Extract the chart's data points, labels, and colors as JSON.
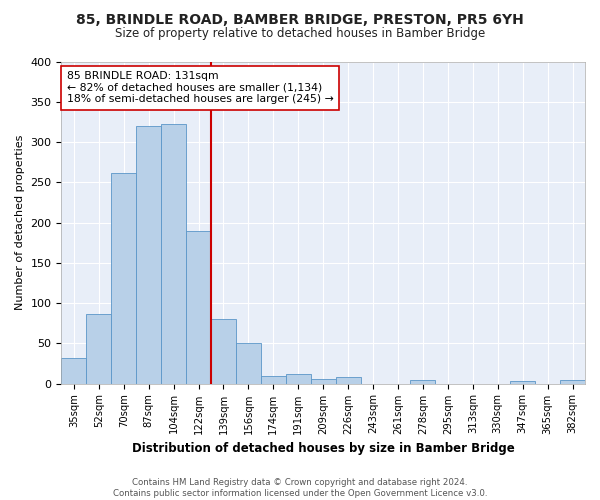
{
  "title": "85, BRINDLE ROAD, BAMBER BRIDGE, PRESTON, PR5 6YH",
  "subtitle": "Size of property relative to detached houses in Bamber Bridge",
  "xlabel": "Distribution of detached houses by size in Bamber Bridge",
  "ylabel": "Number of detached properties",
  "bar_color": "#b8d0e8",
  "bar_edge_color": "#5a96c8",
  "categories": [
    "35sqm",
    "52sqm",
    "70sqm",
    "87sqm",
    "104sqm",
    "122sqm",
    "139sqm",
    "156sqm",
    "174sqm",
    "191sqm",
    "209sqm",
    "226sqm",
    "243sqm",
    "261sqm",
    "278sqm",
    "295sqm",
    "313sqm",
    "330sqm",
    "347sqm",
    "365sqm",
    "382sqm"
  ],
  "values": [
    32,
    87,
    261,
    320,
    322,
    190,
    80,
    50,
    10,
    12,
    6,
    8,
    0,
    0,
    4,
    0,
    0,
    0,
    3,
    0,
    4
  ],
  "property_line_x": 5.5,
  "annotation_line1": "85 BRINDLE ROAD: 131sqm",
  "annotation_line2": "← 82% of detached houses are smaller (1,134)",
  "annotation_line3": "18% of semi-detached houses are larger (245) →",
  "line_color": "#cc0000",
  "annotation_box_color": "#ffffff",
  "annotation_box_edge": "#cc0000",
  "footer": "Contains HM Land Registry data © Crown copyright and database right 2024.\nContains public sector information licensed under the Open Government Licence v3.0.",
  "bg_color": "#ffffff",
  "plot_bg": "#e8eef8",
  "grid_color": "#ffffff",
  "ylim": [
    0,
    400
  ],
  "yticks": [
    0,
    50,
    100,
    150,
    200,
    250,
    300,
    350,
    400
  ]
}
